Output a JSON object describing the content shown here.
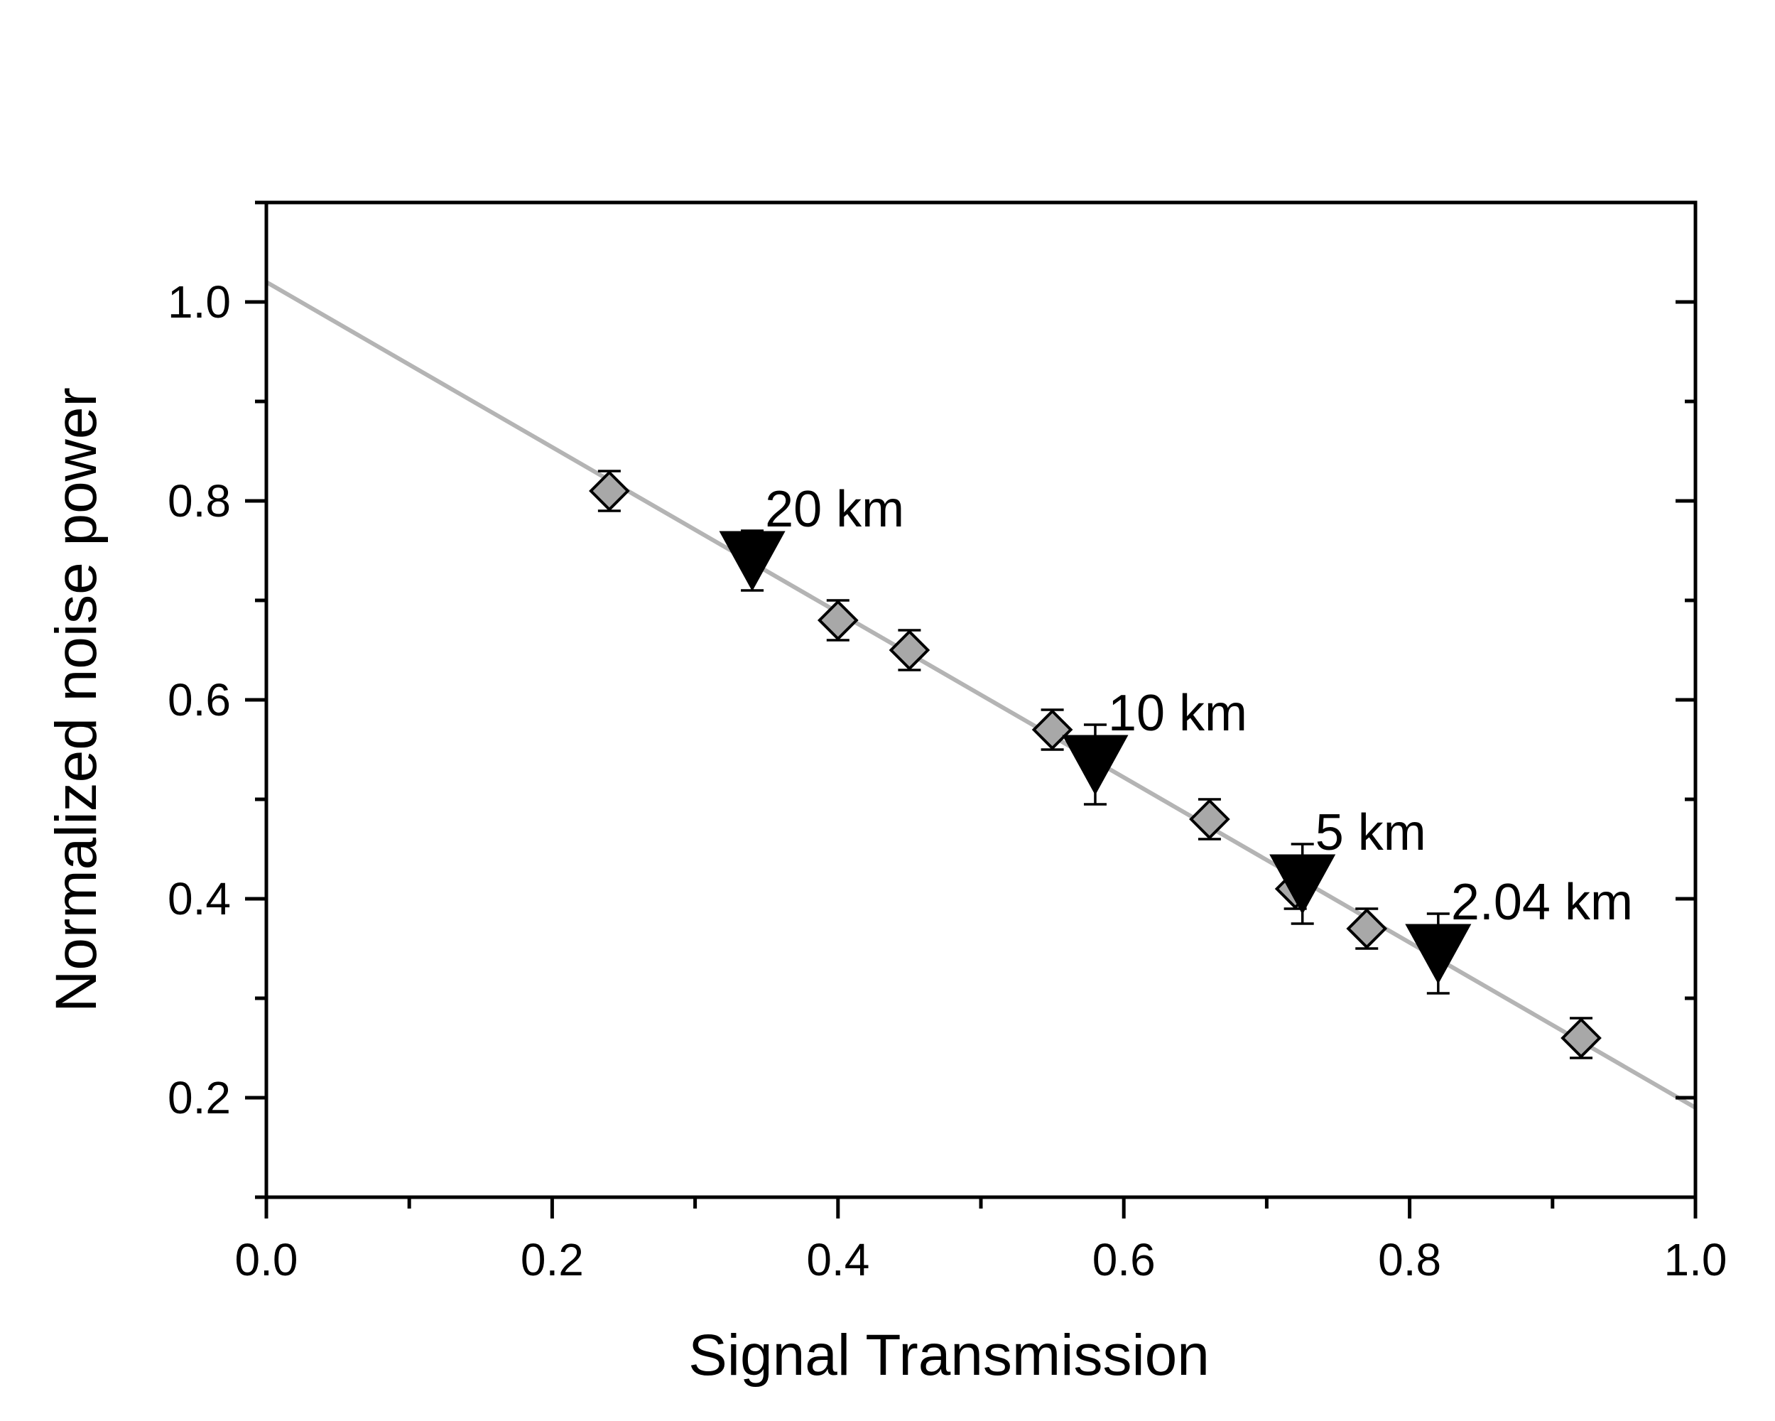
{
  "chart_data": {
    "type": "scatter",
    "xlabel": "Signal Transmission",
    "ylabel": "Normalized noise power",
    "xlim": [
      0.0,
      1.0
    ],
    "ylim": [
      0.1,
      1.1
    ],
    "xticks": [
      "0.0",
      "0.2",
      "0.4",
      "0.6",
      "0.8",
      "1.0"
    ],
    "yticks": [
      "0.2",
      "0.4",
      "0.6",
      "0.8",
      "1.0"
    ],
    "grid": false,
    "series": [
      {
        "marker": "diamond",
        "color": "#a8a8a8",
        "x": [
          0.24,
          0.4,
          0.45,
          0.55,
          0.66,
          0.72,
          0.77,
          0.92
        ],
        "y": [
          0.81,
          0.68,
          0.65,
          0.57,
          0.48,
          0.41,
          0.37,
          0.26
        ],
        "error": [
          0.02,
          0.02,
          0.02,
          0.02,
          0.02,
          0.02,
          0.02,
          0.02
        ]
      },
      {
        "marker": "triangle-down",
        "color": "#000000",
        "x": [
          0.34,
          0.58,
          0.725,
          0.82
        ],
        "y": [
          0.74,
          0.535,
          0.415,
          0.345
        ],
        "error": [
          0.03,
          0.04,
          0.04,
          0.04
        ]
      },
      {
        "type": "line",
        "color": "#b4b4b4",
        "x": [
          0.0,
          1.0
        ],
        "y": [
          1.02,
          0.19
        ]
      }
    ],
    "annotations": [
      {
        "text": "20 km",
        "x": 0.34,
        "y": 0.74
      },
      {
        "text": "10 km",
        "x": 0.58,
        "y": 0.535
      },
      {
        "text": "5 km",
        "x": 0.725,
        "y": 0.415
      },
      {
        "text": "2.04 km",
        "x": 0.82,
        "y": 0.345
      }
    ]
  }
}
